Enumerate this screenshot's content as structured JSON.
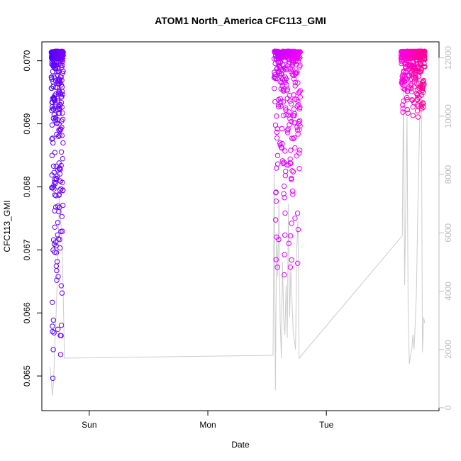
{
  "chart_data": {
    "type": "scatter",
    "title": "ATOM1 North_America CFC113_GMI",
    "xlabel": "Date",
    "ylabel": "CFC113_GMI",
    "x_ticks": [
      "Sun",
      "Mon",
      "Tue"
    ],
    "x_range_days": [
      -0.4,
      2.95
    ],
    "ylim": [
      0.06445,
      0.0703
    ],
    "y_ticks": [
      0.065,
      0.066,
      0.067,
      0.068,
      0.069,
      0.07
    ],
    "y_tick_labels": [
      "0.065",
      "0.066",
      "0.067",
      "0.068",
      "0.069",
      "0.070"
    ],
    "y2lim": [
      -100,
      12550
    ],
    "y2_ticks": [
      0,
      2000,
      4000,
      6000,
      8000,
      10000,
      12000
    ],
    "y2_tick_labels": [
      "0",
      "2000",
      "4000",
      "6000",
      "8000",
      "10000",
      "12000"
    ],
    "secondary_series_color": "#cccccc",
    "marker_colors": [
      "#5000ff",
      "#7a00ff",
      "#a000ff",
      "#c800ff",
      "#e600ff",
      "#ff00e0",
      "#ff00b0",
      "#ff0090"
    ],
    "grid": false,
    "legend": "none",
    "segments": [
      {
        "t_start": -0.32,
        "t_end": -0.22,
        "color_start": "#5000ff",
        "color_end": "#7a00ff",
        "min": 0.06455,
        "max": 0.07015
      },
      {
        "t_start": 1.56,
        "t_end": 1.78,
        "color_start": "#c800ff",
        "color_end": "#f000ff",
        "min": 0.0663,
        "max": 0.07015
      },
      {
        "t_start": 2.63,
        "t_end": 2.83,
        "color_start": "#ff00e6",
        "color_end": "#ff0090",
        "min": 0.06905,
        "max": 0.07015
      }
    ],
    "altitude_line": [
      [
        -0.33,
        1400
      ],
      [
        -0.31,
        400
      ],
      [
        -0.3,
        1000
      ],
      [
        -0.29,
        2200
      ],
      [
        -0.28,
        3200
      ],
      [
        -0.27,
        4400
      ],
      [
        -0.26,
        6000
      ],
      [
        -0.25,
        7200
      ],
      [
        -0.24,
        6400
      ],
      [
        -0.23,
        5800
      ],
      [
        -0.22,
        4000
      ],
      [
        -0.21,
        1700
      ],
      [
        1.55,
        1800
      ],
      [
        1.56,
        8100
      ],
      [
        1.57,
        600
      ],
      [
        1.58,
        6000
      ],
      [
        1.59,
        4500
      ],
      [
        1.6,
        7000
      ],
      [
        1.61,
        3000
      ],
      [
        1.62,
        1700
      ],
      [
        1.63,
        5000
      ],
      [
        1.64,
        3000
      ],
      [
        1.65,
        2500
      ],
      [
        1.66,
        4200
      ],
      [
        1.67,
        2400
      ],
      [
        1.68,
        7000
      ],
      [
        1.69,
        3100
      ],
      [
        1.7,
        4800
      ],
      [
        1.72,
        2600
      ],
      [
        1.74,
        2000
      ],
      [
        1.75,
        5500
      ],
      [
        1.76,
        6400
      ],
      [
        1.77,
        1700
      ],
      [
        2.64,
        5900
      ],
      [
        2.65,
        11000
      ],
      [
        2.66,
        4200
      ],
      [
        2.68,
        10000
      ],
      [
        2.69,
        3200
      ],
      [
        2.7,
        1500
      ],
      [
        2.71,
        1800
      ],
      [
        2.72,
        2000
      ],
      [
        2.73,
        2500
      ],
      [
        2.74,
        2000
      ],
      [
        2.75,
        3000
      ],
      [
        2.76,
        4000
      ],
      [
        2.77,
        6500
      ],
      [
        2.78,
        8500
      ],
      [
        2.79,
        10500
      ],
      [
        2.8,
        12400
      ],
      [
        2.81,
        1900
      ],
      [
        2.82,
        3100
      ],
      [
        2.83,
        2900
      ]
    ]
  }
}
